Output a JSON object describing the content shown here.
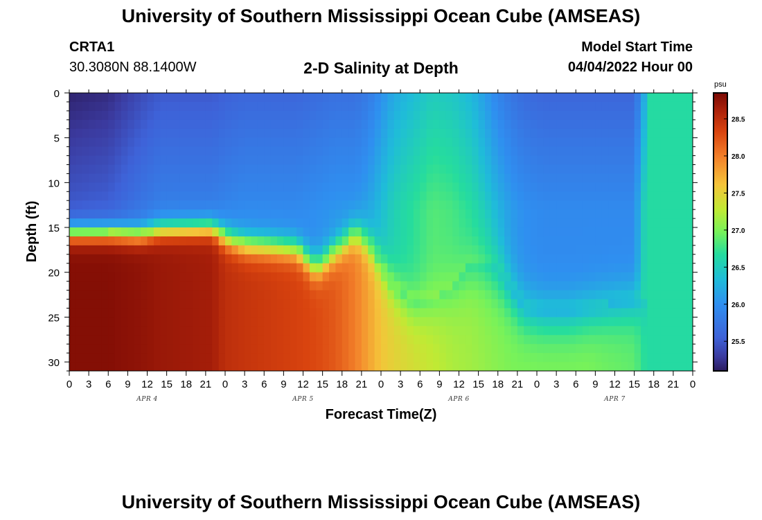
{
  "header": {
    "title": "University of Southern Mississippi Ocean Cube (AMSEAS)",
    "station_id": "CRTA1",
    "coordinates": "30.3080N  88.1400W",
    "chart_title": "2-D Salinity at Depth",
    "model_start_label": "Model Start Time",
    "model_start_value": "04/04/2022 Hour 00"
  },
  "footer": {
    "title": "University of Southern Mississippi Ocean Cube (AMSEAS)"
  },
  "chart_data": {
    "type": "heatmap",
    "title": "2-D Salinity at Depth",
    "xlabel": "Forecast Time(Z)",
    "ylabel": "Depth (ft)",
    "x_tick_labels": [
      "0",
      "3",
      "6",
      "9",
      "12",
      "15",
      "18",
      "21",
      "0",
      "3",
      "6",
      "9",
      "12",
      "15",
      "18",
      "21",
      "0",
      "3",
      "6",
      "9",
      "12",
      "15",
      "18",
      "21",
      "0",
      "3",
      "6",
      "9",
      "12",
      "15",
      "18",
      "21",
      "0"
    ],
    "x_range_hours": [
      0,
      96
    ],
    "day_labels": [
      "APR 4",
      "APR 5",
      "APR 6",
      "APR 7"
    ],
    "day_label_hours": [
      12,
      36,
      60,
      84
    ],
    "y_tick_labels": [
      "0",
      "5",
      "10",
      "15",
      "20",
      "25",
      "30"
    ],
    "y_tick_values": [
      0,
      5,
      10,
      15,
      20,
      25,
      30
    ],
    "ylim": [
      0,
      31
    ],
    "y_inverted": true,
    "colorbar": {
      "unit": "psu",
      "tick_labels": [
        "28.5",
        "28.0",
        "27.5",
        "27.0",
        "26.5",
        "26.0",
        "25.5"
      ],
      "tick_values": [
        28.5,
        28.0,
        27.5,
        27.0,
        26.5,
        26.0,
        25.5
      ],
      "range": [
        25.1,
        28.85
      ]
    },
    "profiles": {
      "time_hours": [
        0,
        6,
        11,
        14,
        22,
        24,
        27,
        31,
        35,
        38,
        41,
        44,
        46,
        48,
        50,
        53,
        56,
        59,
        62,
        64,
        66,
        68,
        70,
        73,
        77,
        80,
        83,
        87,
        88.5,
        89.5,
        96
      ],
      "halocline_depth_ft": [
        15.5,
        15.5,
        15.7,
        15.2,
        15.0,
        16.0,
        16.8,
        17.0,
        17.3,
        19.5,
        17.5,
        15.5,
        16.5,
        19.0,
        21.5,
        23.5,
        23.0,
        21.5,
        19.0,
        18.5,
        19.5,
        22.0,
        24.0,
        24.5,
        24.5,
        24.0,
        23.5,
        23.0,
        23.0,
        23.0,
        23.0
      ],
      "halocline_width_ft": [
        2.5,
        2.5,
        2.5,
        2.5,
        2.5,
        3.0,
        3.2,
        3.2,
        3.2,
        3.5,
        3.5,
        3.5,
        4.0,
        5.0,
        6.0,
        6.5,
        7.0,
        8.0,
        9.0,
        10.0,
        9.0,
        7.0,
        6.5,
        6.5,
        6.5,
        6.5,
        6.5,
        6.5,
        6.5,
        6.5,
        6.5
      ],
      "surface_salinity_psu": [
        25.15,
        25.2,
        25.4,
        25.5,
        25.5,
        25.55,
        25.6,
        25.6,
        25.6,
        25.65,
        25.7,
        25.7,
        25.8,
        26.0,
        26.2,
        26.35,
        26.5,
        26.45,
        26.3,
        26.1,
        25.9,
        25.75,
        25.65,
        25.6,
        25.6,
        25.6,
        25.6,
        25.6,
        26.2,
        26.65,
        26.65
      ],
      "bottom_salinity_psu": [
        28.8,
        28.8,
        28.75,
        28.7,
        28.65,
        28.5,
        28.45,
        28.4,
        28.35,
        28.3,
        28.2,
        28.0,
        27.8,
        27.6,
        27.5,
        27.4,
        27.3,
        27.2,
        27.15,
        27.1,
        27.05,
        27.0,
        27.0,
        27.0,
        27.0,
        27.0,
        26.95,
        26.9,
        26.7,
        26.65,
        26.65
      ]
    }
  }
}
